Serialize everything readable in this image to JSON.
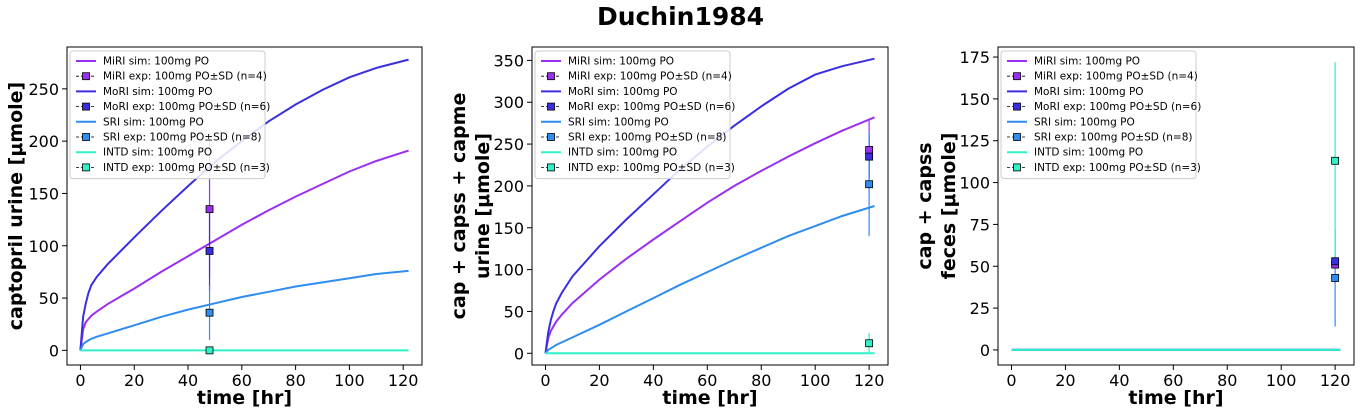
{
  "figure": {
    "title": "Duchin1984"
  },
  "colors": {
    "MiRI": "#9b2ff0",
    "MoRI": "#3a2ee0",
    "SRI": "#2f8cf0",
    "INTD": "#2ff0c8"
  },
  "chart_data": [
    {
      "type": "line",
      "xlabel": "time [hr]",
      "ylabel": [
        "captopril urine [μmole]"
      ],
      "xlim": [
        -5,
        127
      ],
      "ylim": [
        -14,
        290
      ],
      "xticks": [
        0,
        20,
        40,
        60,
        80,
        100,
        120
      ],
      "yticks": [
        0,
        50,
        100,
        150,
        200,
        250
      ],
      "grid": false,
      "legend_position": "top-left",
      "series": [
        {
          "name": "MiRI sim: 100mg PO",
          "key": "MiRI",
          "kind": "sim",
          "x": [
            0,
            1,
            2,
            4,
            6,
            10,
            20,
            30,
            40,
            50,
            60,
            70,
            80,
            90,
            100,
            110,
            122
          ],
          "y": [
            0,
            20,
            27,
            33,
            37,
            44,
            59,
            75,
            90,
            105,
            120,
            134,
            147,
            159,
            171,
            181,
            191
          ]
        },
        {
          "name": "MiRI exp: 100mg PO±SD (n=4)",
          "key": "MiRI",
          "kind": "exp",
          "x": [
            48
          ],
          "y": [
            135
          ],
          "sd": [
            65
          ]
        },
        {
          "name": "MoRI sim: 100mg PO",
          "key": "MoRI",
          "kind": "sim",
          "x": [
            0,
            1,
            2,
            3,
            4,
            6,
            10,
            20,
            30,
            40,
            50,
            60,
            70,
            80,
            90,
            100,
            110,
            122
          ],
          "y": [
            0,
            32,
            45,
            55,
            62,
            70,
            82,
            108,
            133,
            157,
            180,
            200,
            219,
            235,
            249,
            261,
            270,
            278
          ]
        },
        {
          "name": "MoRI exp: 100mg PO±SD (n=6)",
          "key": "MoRI",
          "kind": "exp",
          "x": [
            48
          ],
          "y": [
            95
          ],
          "sd": [
            38
          ]
        },
        {
          "name": "SRI sim: 100mg PO",
          "key": "SRI",
          "kind": "sim",
          "x": [
            0,
            1,
            2,
            4,
            6,
            10,
            20,
            30,
            40,
            50,
            60,
            70,
            80,
            90,
            100,
            110,
            122
          ],
          "y": [
            0,
            6,
            8,
            11,
            13,
            16,
            24,
            32,
            39,
            45,
            51,
            56,
            61,
            65,
            69,
            73,
            76
          ]
        },
        {
          "name": "SRI exp: 100mg PO±SD (n=8)",
          "key": "SRI",
          "kind": "exp",
          "x": [
            48
          ],
          "y": [
            36
          ],
          "sd": [
            26
          ]
        },
        {
          "name": "INTD sim: 100mg PO",
          "key": "INTD",
          "kind": "sim",
          "x": [
            0,
            122
          ],
          "y": [
            0,
            0
          ]
        },
        {
          "name": "INTD exp: 100mg PO±SD (n=3)",
          "key": "INTD",
          "kind": "exp",
          "x": [
            48
          ],
          "y": [
            0
          ],
          "sd": [
            2
          ]
        }
      ]
    },
    {
      "type": "line",
      "xlabel": "time [hr]",
      "ylabel": [
        "cap + capss + capme",
        "urine [μmole]"
      ],
      "xlim": [
        -5,
        127
      ],
      "ylim": [
        -14,
        366
      ],
      "xticks": [
        0,
        20,
        40,
        60,
        80,
        100,
        120
      ],
      "yticks": [
        0,
        50,
        100,
        150,
        200,
        250,
        300,
        350
      ],
      "grid": false,
      "legend_position": "top-left",
      "series": [
        {
          "name": "MiRI sim: 100mg PO",
          "key": "MiRI",
          "kind": "sim",
          "x": [
            0,
            1,
            2,
            4,
            6,
            10,
            20,
            30,
            40,
            50,
            60,
            70,
            80,
            90,
            100,
            110,
            122
          ],
          "y": [
            0,
            18,
            27,
            38,
            46,
            60,
            88,
            113,
            136,
            158,
            180,
            200,
            218,
            235,
            251,
            266,
            282
          ]
        },
        {
          "name": "MiRI exp: 100mg PO±SD (n=4)",
          "key": "MiRI",
          "kind": "exp",
          "x": [
            120
          ],
          "y": [
            243
          ],
          "sd": [
            35
          ]
        },
        {
          "name": "MoRI sim: 100mg PO",
          "key": "MoRI",
          "kind": "sim",
          "x": [
            0,
            1,
            2,
            3,
            4,
            6,
            10,
            20,
            30,
            40,
            50,
            60,
            70,
            80,
            90,
            100,
            110,
            122
          ],
          "y": [
            0,
            25,
            40,
            51,
            60,
            72,
            92,
            128,
            160,
            190,
            220,
            247,
            272,
            295,
            316,
            333,
            343,
            352
          ]
        },
        {
          "name": "MoRI exp: 100mg PO±SD (n=6)",
          "key": "MoRI",
          "kind": "exp",
          "x": [
            120
          ],
          "y": [
            235
          ],
          "sd": [
            25
          ]
        },
        {
          "name": "SRI sim: 100mg PO",
          "key": "SRI",
          "kind": "sim",
          "x": [
            0,
            1,
            2,
            4,
            6,
            10,
            20,
            30,
            40,
            50,
            60,
            70,
            80,
            90,
            100,
            110,
            122
          ],
          "y": [
            0,
            4,
            6,
            10,
            13,
            19,
            34,
            50,
            66,
            82,
            97,
            112,
            126,
            140,
            152,
            164,
            176
          ]
        },
        {
          "name": "SRI exp: 100mg PO±SD (n=8)",
          "key": "SRI",
          "kind": "exp",
          "x": [
            120
          ],
          "y": [
            202
          ],
          "sd": [
            62
          ]
        },
        {
          "name": "INTD sim: 100mg PO",
          "key": "INTD",
          "kind": "sim",
          "x": [
            0,
            122
          ],
          "y": [
            0,
            0
          ]
        },
        {
          "name": "INTD exp: 100mg PO±SD (n=3)",
          "key": "INTD",
          "kind": "exp",
          "x": [
            120
          ],
          "y": [
            12
          ],
          "sd": [
            12
          ]
        }
      ]
    },
    {
      "type": "line",
      "xlabel": "time [hr]",
      "ylabel": [
        "cap + capss",
        "feces [μmole]"
      ],
      "xlim": [
        -5,
        127
      ],
      "ylim": [
        -9,
        181
      ],
      "xticks": [
        0,
        20,
        40,
        60,
        80,
        100,
        120
      ],
      "yticks": [
        0,
        25,
        50,
        75,
        100,
        125,
        150,
        175
      ],
      "grid": false,
      "legend_position": "top-left",
      "series": [
        {
          "name": "MiRI sim: 100mg PO",
          "key": "MiRI",
          "kind": "sim",
          "x": [
            0,
            122
          ],
          "y": [
            0,
            0
          ]
        },
        {
          "name": "MiRI exp: 100mg PO±SD (n=4)",
          "key": "MiRI",
          "kind": "exp",
          "x": [
            120
          ],
          "y": [
            51
          ],
          "sd": [
            0
          ]
        },
        {
          "name": "MoRI sim: 100mg PO",
          "key": "MoRI",
          "kind": "sim",
          "x": [
            0,
            122
          ],
          "y": [
            0,
            0
          ]
        },
        {
          "name": "MoRI exp: 100mg PO±SD (n=6)",
          "key": "MoRI",
          "kind": "exp",
          "x": [
            120
          ],
          "y": [
            53
          ],
          "sd": [
            0
          ]
        },
        {
          "name": "SRI sim: 100mg PO",
          "key": "SRI",
          "kind": "sim",
          "x": [
            0,
            122
          ],
          "y": [
            0,
            0
          ]
        },
        {
          "name": "SRI exp: 100mg PO±SD (n=8)",
          "key": "SRI",
          "kind": "exp",
          "x": [
            120
          ],
          "y": [
            43
          ],
          "sd": [
            29
          ]
        },
        {
          "name": "INTD sim: 100mg PO",
          "key": "INTD",
          "kind": "sim",
          "x": [
            0,
            122
          ],
          "y": [
            0,
            0
          ]
        },
        {
          "name": "INTD exp: 100mg PO±SD (n=3)",
          "key": "INTD",
          "kind": "exp",
          "x": [
            120
          ],
          "y": [
            113
          ],
          "sd": [
            59
          ]
        }
      ]
    }
  ]
}
